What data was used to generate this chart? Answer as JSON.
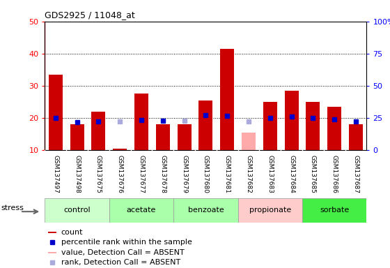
{
  "title": "GDS2925 / 11048_at",
  "samples": [
    "GSM137497",
    "GSM137498",
    "GSM137675",
    "GSM137676",
    "GSM137677",
    "GSM137678",
    "GSM137679",
    "GSM137680",
    "GSM137681",
    "GSM137682",
    "GSM137683",
    "GSM137684",
    "GSM137685",
    "GSM137686",
    "GSM137687"
  ],
  "count_values": [
    33.5,
    18.0,
    22.0,
    10.5,
    27.5,
    18.0,
    18.0,
    25.5,
    41.5,
    15.5,
    25.0,
    28.5,
    25.0,
    23.5,
    18.0
  ],
  "count_absent": [
    false,
    false,
    false,
    false,
    false,
    false,
    false,
    false,
    false,
    true,
    false,
    false,
    false,
    false,
    false
  ],
  "percentile_values": [
    25.0,
    21.5,
    22.5,
    22.0,
    23.5,
    23.0,
    23.0,
    27.0,
    26.5,
    22.5,
    25.0,
    26.0,
    25.0,
    24.0,
    22.5
  ],
  "percentile_absent": [
    false,
    false,
    false,
    true,
    false,
    false,
    true,
    false,
    false,
    true,
    false,
    false,
    false,
    false,
    false
  ],
  "groups": [
    {
      "name": "control",
      "indices": [
        0,
        1,
        2
      ],
      "color": "#ccffcc"
    },
    {
      "name": "acetate",
      "indices": [
        3,
        4,
        5
      ],
      "color": "#aaffaa"
    },
    {
      "name": "benzoate",
      "indices": [
        6,
        7,
        8
      ],
      "color": "#ccffcc"
    },
    {
      "name": "propionate",
      "indices": [
        9,
        10,
        11
      ],
      "color": "#ffcccc"
    },
    {
      "name": "sorbate",
      "indices": [
        12,
        13,
        14
      ],
      "color": "#44ee44"
    }
  ],
  "ylim_left": [
    10,
    50
  ],
  "ylim_right": [
    0,
    100
  ],
  "bar_color_red": "#cc0000",
  "bar_color_pink": "#ffaaaa",
  "dot_color_blue": "#0000cc",
  "dot_color_lightblue": "#aaaadd",
  "bg_color": "#e0e0e0",
  "label_bg_color": "#cccccc"
}
